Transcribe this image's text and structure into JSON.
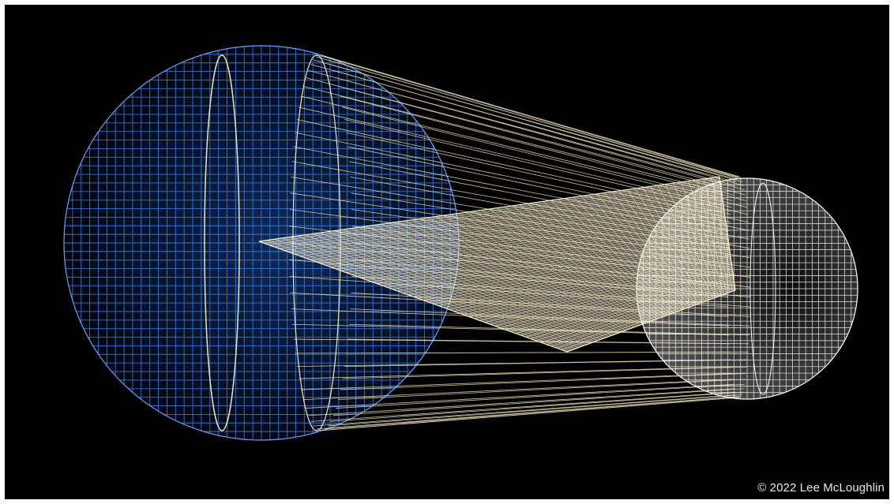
{
  "image": {
    "credit": "© 2022 Lee McLoughlin"
  },
  "colors": {
    "background": "#000000",
    "large_sphere": "#3f7fe0",
    "large_sphere_fill": "#081a44",
    "cone": "#f3e6b8",
    "plane": "#fff6d6",
    "small_sphere": "#ffffff"
  }
}
